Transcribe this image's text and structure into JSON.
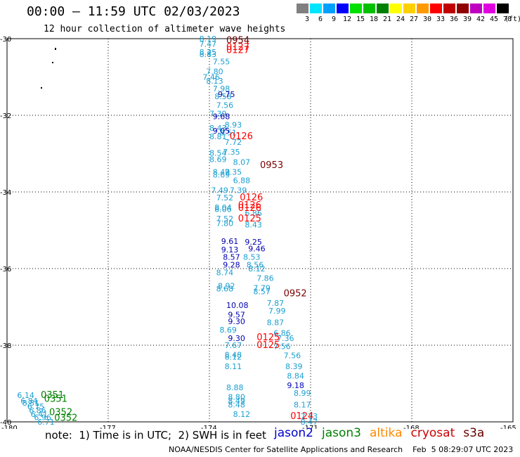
{
  "title": "00:00 – 11:59 UTC 02/03/2023",
  "subtitle": "12 hour collection of altimeter wave heights",
  "colorbar": {
    "labels": [
      "3",
      "6",
      "9",
      "12",
      "15",
      "18",
      "21",
      "24",
      "27",
      "30",
      "33",
      "36",
      "39",
      "42",
      "45",
      "70"
    ],
    "unit": "(ft)",
    "colors": [
      "#808080",
      "#00e5ff",
      "#00a0ff",
      "#0000ff",
      "#00e000",
      "#00c000",
      "#008000",
      "#ffff00",
      "#ffd000",
      "#ff9900",
      "#ff0000",
      "#c00000",
      "#900000",
      "#c000c0",
      "#e000e0",
      "#000000"
    ]
  },
  "footer": {
    "note": "note:  1) Time is in UTC;  2) SWH is in feet",
    "legend": [
      "jason2",
      "jason3",
      "altika",
      "cryosat",
      "s3a"
    ],
    "legend_colors": [
      "#0000cc",
      "#008000",
      "#ff8800",
      "#cc0000",
      "#660000"
    ],
    "credit": "NOAA/NESDIS Center for Satellite Applications and Research    Feb  5 08:29:07 UTC 2023"
  },
  "chart_data": {
    "type": "scatter",
    "x_ticks": [
      "-180",
      "-177",
      "-174",
      "-171",
      "-168",
      "-165"
    ],
    "y_ticks": [
      "-30",
      "-32",
      "-34",
      "-36",
      "-38",
      "-40"
    ],
    "xlim": [
      -180,
      -165
    ],
    "ylim": [
      -40,
      -30
    ],
    "grid": true,
    "series": [
      {
        "name": "jason2",
        "color": "#1a9fd0",
        "points": [
          [
            -174.3,
            -30.0,
            "8.19"
          ],
          [
            -174.3,
            -30.14,
            "7.47"
          ],
          [
            -174.3,
            -30.35,
            "8.25"
          ],
          [
            -174.3,
            -30.4,
            "8.83"
          ],
          [
            -173.9,
            -30.6,
            "7.55"
          ],
          [
            -174.1,
            -30.85,
            "7.80"
          ],
          [
            -174.2,
            -31.0,
            "7.46"
          ],
          [
            -174.1,
            -31.1,
            "8.13"
          ],
          [
            -173.9,
            -31.3,
            "7.98"
          ],
          [
            -173.85,
            -31.5,
            "8.58"
          ],
          [
            -173.8,
            -31.73,
            "7.56"
          ],
          [
            -174.0,
            -31.95,
            "7.39"
          ],
          [
            -173.55,
            -32.25,
            "8.93"
          ],
          [
            -174.0,
            -32.33,
            "8.43"
          ],
          [
            -173.7,
            -32.45,
            "8.51"
          ],
          [
            -174.0,
            -32.55,
            "8.81"
          ],
          [
            -173.55,
            -32.7,
            "7.72"
          ],
          [
            -173.6,
            -32.95,
            "7.35"
          ],
          [
            -174.0,
            -32.98,
            "8.54"
          ],
          [
            -174.0,
            -33.15,
            "8.69"
          ],
          [
            -173.3,
            -33.22,
            "8.07"
          ],
          [
            -173.55,
            -33.48,
            "7.35"
          ],
          [
            -173.9,
            -33.48,
            "8.49"
          ],
          [
            -173.9,
            -33.55,
            "8.69"
          ],
          [
            -173.3,
            -33.7,
            "6.88"
          ],
          [
            -173.4,
            -33.95,
            "7.39"
          ],
          [
            -173.95,
            -33.95,
            "7.49"
          ],
          [
            -173.8,
            -34.15,
            "7.52"
          ],
          [
            -173.85,
            -34.4,
            "8.04"
          ],
          [
            -173.85,
            -34.45,
            "8.06"
          ],
          [
            -172.95,
            -34.55,
            "6.86"
          ],
          [
            -173.8,
            -34.7,
            "7.52"
          ],
          [
            -173.8,
            -34.82,
            "7.80"
          ],
          [
            -172.95,
            -34.85,
            "8.43"
          ],
          [
            -173.0,
            -35.7,
            "8.53"
          ],
          [
            -172.9,
            -35.9,
            "8.56"
          ],
          [
            -173.8,
            -36.1,
            "8.74"
          ],
          [
            -172.85,
            -36.0,
            "8.12"
          ],
          [
            -172.6,
            -36.25,
            "7.86"
          ],
          [
            -173.75,
            -36.45,
            "8.92"
          ],
          [
            -172.7,
            -36.5,
            "7.79"
          ],
          [
            -173.8,
            -36.52,
            "8.68"
          ],
          [
            -172.7,
            -36.6,
            "8.57"
          ],
          [
            -172.3,
            -36.9,
            "7.87"
          ],
          [
            -172.25,
            -37.1,
            "7.99"
          ],
          [
            -172.3,
            -37.4,
            "8.87"
          ],
          [
            -173.7,
            -37.6,
            "8.69"
          ],
          [
            -172.1,
            -37.68,
            "6.86"
          ],
          [
            -172.0,
            -37.82,
            "7.36"
          ],
          [
            -173.55,
            -38.0,
            "7.67"
          ],
          [
            -172.1,
            -38.03,
            "7.56"
          ],
          [
            -173.55,
            -38.25,
            "8.48"
          ],
          [
            -173.55,
            -38.3,
            "8.12"
          ],
          [
            -171.8,
            -38.27,
            "7.56"
          ],
          [
            -171.75,
            -38.55,
            "8.39"
          ],
          [
            -173.55,
            -38.55,
            "8.11"
          ],
          [
            -171.7,
            -38.8,
            "8.84"
          ],
          [
            -173.5,
            -39.1,
            "8.88"
          ],
          [
            -171.5,
            -39.25,
            "8.99"
          ],
          [
            -173.45,
            -39.35,
            "8.80"
          ],
          [
            -173.45,
            -39.45,
            "8.49"
          ],
          [
            -173.45,
            -39.55,
            "8.48"
          ],
          [
            -171.5,
            -39.55,
            "8.17"
          ],
          [
            -173.3,
            -39.8,
            "8.12"
          ],
          [
            -171.3,
            -39.85,
            "7.73"
          ],
          [
            -171.3,
            -40.0,
            "8.47"
          ],
          [
            -179.7,
            -39.3,
            "6.14"
          ],
          [
            -179.6,
            -39.45,
            "6.84"
          ],
          [
            -179.55,
            -39.5,
            "8.51"
          ],
          [
            -179.4,
            -39.6,
            "6.75"
          ],
          [
            -179.35,
            -39.7,
            "6.86"
          ],
          [
            -179.3,
            -39.8,
            "6.41"
          ],
          [
            -179.2,
            -39.88,
            "6.96"
          ],
          [
            -179.1,
            -40.0,
            "6.71"
          ]
        ]
      },
      {
        "name": "jason3",
        "color": "#0000b0",
        "points": [
          [
            -173.75,
            -31.45,
            "9.75"
          ],
          [
            -173.9,
            -32.03,
            "9.68"
          ],
          [
            -173.9,
            -32.4,
            "9.05"
          ],
          [
            -173.65,
            -35.28,
            "9.61"
          ],
          [
            -172.95,
            -35.3,
            "9.25"
          ],
          [
            -172.85,
            -35.48,
            "9.46"
          ],
          [
            -173.65,
            -35.5,
            "9.13"
          ],
          [
            -173.6,
            -35.7,
            "8.57"
          ],
          [
            -173.6,
            -35.9,
            "9.28"
          ],
          [
            -173.5,
            -36.95,
            "10.08"
          ],
          [
            -173.45,
            -37.2,
            "9.57"
          ],
          [
            -173.45,
            -37.38,
            "9.30"
          ],
          [
            -173.45,
            -37.82,
            "9.30"
          ],
          [
            -171.7,
            -39.05,
            "9.18"
          ]
        ]
      },
      {
        "name": "cryosat",
        "color": "#ff0000",
        "points": [
          [
            -173.5,
            -30.22,
            "0127"
          ],
          [
            -173.5,
            -30.3,
            "0127"
          ],
          [
            -173.4,
            -32.55,
            "0126"
          ],
          [
            -173.1,
            -34.15,
            "0126"
          ],
          [
            -173.15,
            -34.35,
            "0126"
          ],
          [
            -173.15,
            -34.42,
            "0126"
          ],
          [
            -173.15,
            -34.7,
            "0125"
          ],
          [
            -172.6,
            -37.8,
            "0125"
          ],
          [
            -172.6,
            -38.0,
            "0125"
          ],
          [
            -171.6,
            -39.85,
            "0124"
          ]
        ]
      },
      {
        "name": "s3a",
        "color": "#7a0000",
        "points": [
          [
            -173.5,
            -30.05,
            "0954"
          ],
          [
            -172.5,
            -33.3,
            "0953"
          ],
          [
            -171.8,
            -36.65,
            "0952"
          ]
        ]
      },
      {
        "name": "jason3-time",
        "color": "#008000",
        "points": [
          [
            -179.0,
            -39.3,
            "0351"
          ],
          [
            -178.9,
            -39.4,
            "0351"
          ],
          [
            -178.75,
            -39.75,
            "0352"
          ],
          [
            -178.6,
            -39.9,
            "0352"
          ]
        ]
      }
    ]
  }
}
